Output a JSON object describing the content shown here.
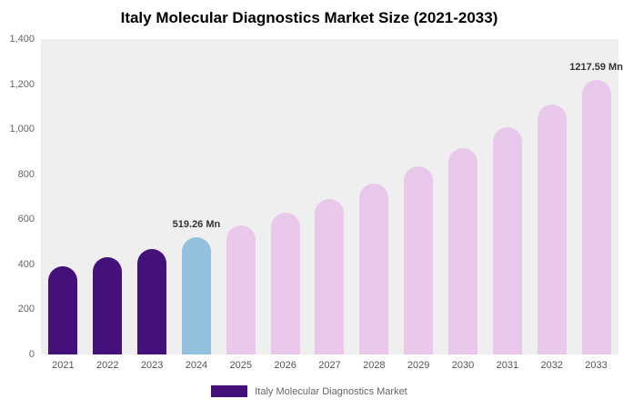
{
  "chart_data": {
    "type": "bar",
    "title": "Italy Molecular Diagnostics Market Size (2021-2033)",
    "categories": [
      "2021",
      "2022",
      "2023",
      "2024",
      "2025",
      "2026",
      "2027",
      "2028",
      "2029",
      "2030",
      "2031",
      "2032",
      "2033"
    ],
    "values": [
      390,
      430,
      470,
      519.26,
      571,
      628,
      690,
      758,
      834,
      917,
      1008,
      1108,
      1217.59
    ],
    "unit": "Mn",
    "ylim": [
      0,
      1400
    ],
    "y_ticks": [
      0,
      200,
      400,
      600,
      800,
      1000,
      1200,
      1400
    ],
    "y_tick_labels": [
      "0",
      "200",
      "400",
      "600",
      "800",
      "1,000",
      "1,200",
      "1,400"
    ],
    "bar_colors": [
      "#44107a",
      "#44107a",
      "#44107a",
      "#92c0dd",
      "#e9c8eb",
      "#e9c8eb",
      "#e9c8eb",
      "#e9c8eb",
      "#e9c8eb",
      "#e9c8eb",
      "#e9c8eb",
      "#e9c8eb",
      "#e9c8eb"
    ],
    "annotations": [
      {
        "index": 3,
        "text": "519.26 Mn"
      },
      {
        "index": 12,
        "text": "1217.59 Mn"
      }
    ],
    "legend": "Italy Molecular Diagnostics Market",
    "legend_color": "#44107a",
    "plot_background": "#efefef",
    "grid": false,
    "legend_position": "bottom"
  }
}
